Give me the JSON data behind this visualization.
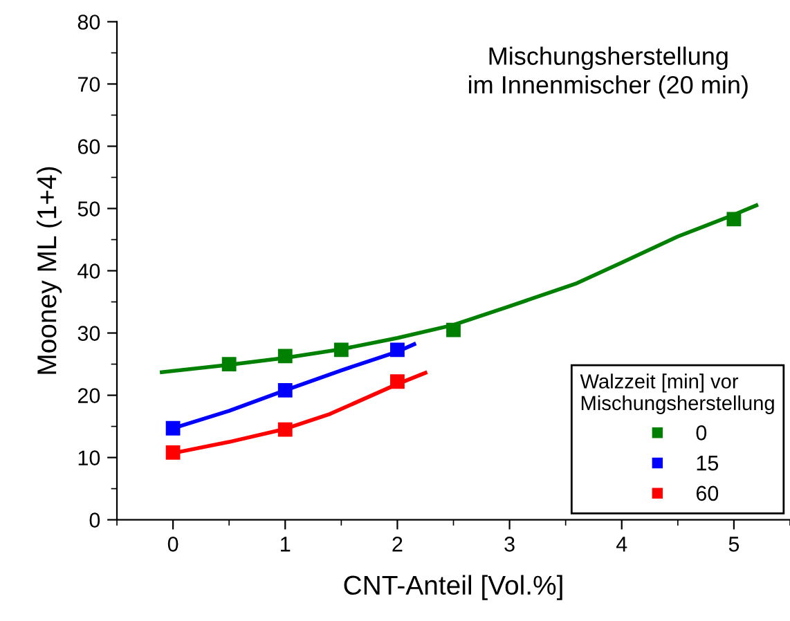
{
  "chart_data": {
    "type": "scatter",
    "xlabel": "CNT-Anteil [Vol.%]",
    "ylabel": "Mooney ML (1+4)",
    "legend_title": "Walzzeit [min] vor\nMischungsherstellung",
    "annotations": [
      "Mischungsherstellung\nim Innenmischer (20 min)"
    ],
    "xlim": [
      -0.5,
      5.5
    ],
    "xticks": [
      0,
      1,
      2,
      3,
      4,
      5
    ],
    "ylim": [
      0,
      80
    ],
    "yticks": [
      0,
      10,
      20,
      30,
      40,
      50,
      60,
      70,
      80
    ],
    "grid": false,
    "legend": "bottom right",
    "series": [
      {
        "name": "0",
        "marker": "square",
        "color": "#008000",
        "x": [
          0.5,
          1,
          1.5,
          2.5,
          5
        ],
        "values": [
          25,
          26.3,
          27.3,
          30.5,
          48.3
        ]
      },
      {
        "name": "15",
        "marker": "square",
        "color": "#0000ff",
        "x": [
          0,
          1,
          2
        ],
        "values": [
          14.7,
          20.8,
          27.3
        ]
      },
      {
        "name": "60",
        "marker": "square",
        "color": "#ff0000",
        "x": [
          0,
          1,
          2
        ],
        "values": [
          10.8,
          14.5,
          22.2
        ]
      },
      {
        "type": "line",
        "color": "#008000",
        "x": [
          -0.1,
          0.5,
          1,
          1.5,
          2,
          2.5,
          3,
          3.6,
          4,
          4.5,
          5,
          5.2
        ],
        "values": [
          23.7,
          24.9,
          26,
          27.4,
          29.2,
          31.3,
          34.3,
          38,
          41.3,
          45.5,
          49,
          50.5
        ]
      },
      {
        "type": "line",
        "color": "#0000ff",
        "x": [
          0,
          0.5,
          1,
          1.5,
          2,
          2.15
        ],
        "values": [
          14.7,
          17.5,
          20.8,
          24,
          27,
          28.2
        ]
      },
      {
        "type": "line",
        "color": "#ff0000",
        "x": [
          0,
          0.5,
          1,
          1.4,
          2,
          2.25
        ],
        "values": [
          10.7,
          12.5,
          14.6,
          17,
          21.8,
          23.6
        ]
      }
    ]
  }
}
